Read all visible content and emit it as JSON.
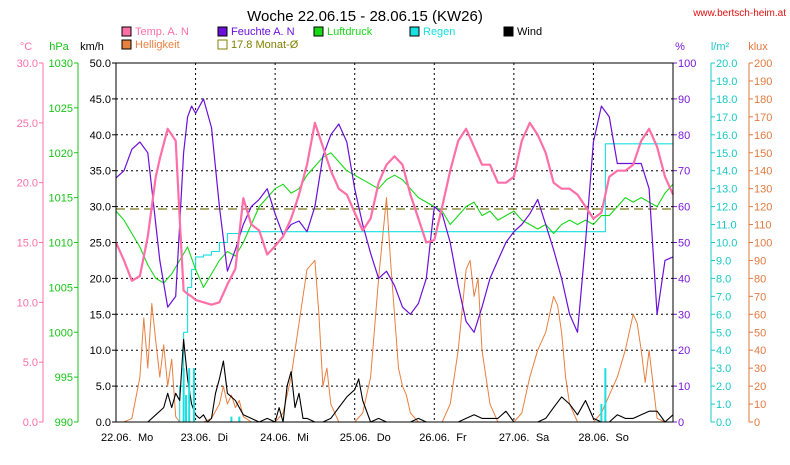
{
  "chart_data": {
    "type": "line",
    "title": "Woche 22.06.15 - 28.06.15 (KW26)",
    "source": "www.bertsch-heim.at",
    "x_labels": [
      "22.06.",
      "Mo",
      "23.06.",
      "Di",
      "24.06.",
      "Mi",
      "25.06.",
      "Do",
      "26.06.",
      "Fr",
      "27.06.",
      "Sa",
      "28.06.",
      "So"
    ],
    "days": [
      {
        "date": "22.06.",
        "day": "Mo"
      },
      {
        "date": "23.06.",
        "day": "Di"
      },
      {
        "date": "24.06.",
        "day": "Mi"
      },
      {
        "date": "25.06.",
        "day": "Do"
      },
      {
        "date": "26.06.",
        "day": "Fr"
      },
      {
        "date": "27.06.",
        "day": "Sa"
      },
      {
        "date": "28.06.",
        "day": "So"
      }
    ],
    "xlim": [
      0,
      7
    ],
    "grid": true,
    "axes": {
      "temp": {
        "unit": "°C",
        "min": 0,
        "max": 30,
        "ticks": [
          "0.0",
          "5.0",
          "10.0",
          "15.0",
          "20.0",
          "25.0",
          "30.0"
        ],
        "color": "#ff6fa8"
      },
      "pressure": {
        "unit": "hPa",
        "min": 990,
        "max": 1030,
        "ticks": [
          "990",
          "995",
          "1000",
          "1005",
          "1010",
          "1015",
          "1020",
          "1025",
          "1030"
        ],
        "color": "#18c418"
      },
      "wind": {
        "unit": "km/h",
        "min": 0,
        "max": 50,
        "ticks": [
          "0.0",
          "5.0",
          "10.0",
          "15.0",
          "20.0",
          "25.0",
          "30.0",
          "35.0",
          "40.0",
          "45.0",
          "50.0"
        ],
        "color": "#000000"
      },
      "humidity": {
        "unit": "%",
        "min": 0,
        "max": 100,
        "ticks": [
          "0",
          "10",
          "20",
          "30",
          "40",
          "50",
          "60",
          "70",
          "80",
          "90",
          "100"
        ],
        "color": "#7a18d8"
      },
      "rain": {
        "unit": "l/m²",
        "min": 0,
        "max": 20,
        "ticks": [
          "0.0",
          "1.0",
          "2.0",
          "3.0",
          "4.0",
          "5.0",
          "6.0",
          "7.0",
          "8.0",
          "9.0",
          "10.0",
          "11.0",
          "12.0",
          "13.0",
          "14.0",
          "15.0",
          "16.0",
          "17.0",
          "18.0",
          "19.0",
          "20.0"
        ],
        "color": "#18c8c8"
      },
      "light": {
        "unit": "klux",
        "min": 0,
        "max": 200,
        "ticks": [
          "0",
          "10",
          "20",
          "30",
          "40",
          "50",
          "60",
          "70",
          "80",
          "90",
          "100",
          "110",
          "120",
          "130",
          "140",
          "150",
          "160",
          "170",
          "180",
          "190",
          "200"
        ],
        "color": "#e07a40"
      }
    },
    "legend": [
      {
        "name": "Temp. A. N",
        "color": "#ff6fa8"
      },
      {
        "name": "Feuchte A. N",
        "color": "#6a10d8"
      },
      {
        "name": "Luftdruck",
        "color": "#18d818"
      },
      {
        "name": "Regen",
        "color": "#18e0e0"
      },
      {
        "name": "Wind",
        "color": "#000000"
      },
      {
        "name": "Helligkeit",
        "color": "#e88040"
      },
      {
        "name": "17.8 Monat-Ø",
        "color": "#808000"
      }
    ],
    "reference_line": {
      "name": "17.8 Monat-Ø",
      "axis": "temp",
      "value": 17.8
    },
    "series": [
      {
        "name": "Temp. A. N",
        "axis": "temp",
        "color": "#ff6fa8",
        "x": [
          0.0,
          0.1,
          0.2,
          0.3,
          0.4,
          0.5,
          0.55,
          0.65,
          0.75,
          0.8,
          0.85,
          0.9,
          0.95,
          1.0,
          1.1,
          1.2,
          1.3,
          1.4,
          1.5,
          1.6,
          1.7,
          1.8,
          1.9,
          2.0,
          2.1,
          2.2,
          2.3,
          2.4,
          2.5,
          2.6,
          2.7,
          2.8,
          2.9,
          3.0,
          3.1,
          3.2,
          3.3,
          3.4,
          3.5,
          3.6,
          3.7,
          3.8,
          3.9,
          4.0,
          4.1,
          4.2,
          4.3,
          4.4,
          4.5,
          4.6,
          4.7,
          4.8,
          4.9,
          5.0,
          5.1,
          5.2,
          5.3,
          5.4,
          5.5,
          5.6,
          5.7,
          5.8,
          5.9,
          6.0,
          6.1,
          6.2,
          6.3,
          6.4,
          6.5,
          6.6,
          6.7,
          6.8,
          6.9,
          7.0
        ],
        "y": [
          15.0,
          13.5,
          11.8,
          12.2,
          15.5,
          20.5,
          22.0,
          24.5,
          23.5,
          17.0,
          11.0,
          10.7,
          10.5,
          10.2,
          10.0,
          9.8,
          10.0,
          11.5,
          12.8,
          18.7,
          16.5,
          16.0,
          14.0,
          14.7,
          15.5,
          17.0,
          19.0,
          21.5,
          25.0,
          23.0,
          21.0,
          19.5,
          19.0,
          17.5,
          16.0,
          17.0,
          20.0,
          21.5,
          22.2,
          21.5,
          19.0,
          17.0,
          15.0,
          15.2,
          18.0,
          21.0,
          23.5,
          24.5,
          23.0,
          21.5,
          21.5,
          20.0,
          20.0,
          20.5,
          23.5,
          25.0,
          24.0,
          22.5,
          20.0,
          19.5,
          19.5,
          19.0,
          18.0,
          17.0,
          17.5,
          20.5,
          21.0,
          21.0,
          21.5,
          23.5,
          24.5,
          23.0,
          20.5,
          19.0
        ]
      },
      {
        "name": "Feuchte A. N",
        "axis": "humidity",
        "color": "#6a10d8",
        "x": [
          0.0,
          0.1,
          0.2,
          0.3,
          0.4,
          0.5,
          0.55,
          0.65,
          0.75,
          0.8,
          0.85,
          0.9,
          0.95,
          1.0,
          1.1,
          1.2,
          1.3,
          1.4,
          1.5,
          1.6,
          1.7,
          1.8,
          1.9,
          2.0,
          2.1,
          2.2,
          2.3,
          2.4,
          2.5,
          2.6,
          2.7,
          2.8,
          2.9,
          3.0,
          3.1,
          3.2,
          3.3,
          3.4,
          3.5,
          3.6,
          3.7,
          3.8,
          3.9,
          4.0,
          4.1,
          4.2,
          4.3,
          4.4,
          4.5,
          4.6,
          4.7,
          4.8,
          4.9,
          5.0,
          5.1,
          5.2,
          5.3,
          5.4,
          5.5,
          5.6,
          5.7,
          5.8,
          5.9,
          6.0,
          6.1,
          6.2,
          6.3,
          6.4,
          6.5,
          6.6,
          6.7,
          6.8,
          6.9,
          7.0
        ],
        "y": [
          68,
          70,
          76,
          78,
          75,
          55,
          45,
          32,
          35,
          55,
          75,
          85,
          88,
          86,
          90,
          82,
          60,
          42,
          48,
          55,
          60,
          62,
          65,
          58,
          52,
          55,
          56,
          53,
          60,
          74,
          80,
          83,
          78,
          65,
          55,
          47,
          40,
          42,
          38,
          32,
          30,
          33,
          40,
          60,
          58,
          50,
          38,
          28,
          25,
          32,
          40,
          45,
          50,
          53,
          55,
          58,
          62,
          55,
          48,
          40,
          30,
          25,
          50,
          78,
          88,
          85,
          72,
          72,
          72,
          72,
          65,
          30,
          45,
          46
        ]
      },
      {
        "name": "Luftdruck",
        "axis": "pressure",
        "color": "#18d818",
        "x": [
          0.0,
          0.1,
          0.2,
          0.3,
          0.4,
          0.5,
          0.6,
          0.7,
          0.8,
          0.9,
          1.0,
          1.1,
          1.2,
          1.3,
          1.4,
          1.5,
          1.6,
          1.7,
          1.8,
          1.9,
          2.0,
          2.1,
          2.2,
          2.3,
          2.4,
          2.5,
          2.6,
          2.7,
          2.8,
          2.9,
          3.0,
          3.1,
          3.2,
          3.3,
          3.4,
          3.5,
          3.6,
          3.7,
          3.8,
          3.9,
          4.0,
          4.1,
          4.2,
          4.3,
          4.4,
          4.5,
          4.6,
          4.7,
          4.8,
          4.9,
          5.0,
          5.1,
          5.2,
          5.3,
          5.4,
          5.5,
          5.6,
          5.7,
          5.8,
          5.9,
          6.0,
          6.1,
          6.2,
          6.3,
          6.4,
          6.5,
          6.6,
          6.7,
          6.8,
          6.9,
          7.0
        ],
        "y": [
          1013.5,
          1012.5,
          1011.0,
          1009.5,
          1007.5,
          1006.0,
          1005.5,
          1006.5,
          1008.0,
          1009.5,
          1007.0,
          1005.0,
          1006.5,
          1008.0,
          1009.0,
          1008.5,
          1010.0,
          1012.0,
          1014.0,
          1015.0,
          1016.0,
          1016.5,
          1015.5,
          1016.0,
          1017.5,
          1018.5,
          1019.5,
          1020.0,
          1019.0,
          1018.0,
          1017.5,
          1017.0,
          1016.5,
          1016.0,
          1017.0,
          1017.5,
          1017.0,
          1016.0,
          1015.0,
          1014.5,
          1014.0,
          1013.5,
          1012.0,
          1013.0,
          1014.0,
          1014.5,
          1013.0,
          1013.5,
          1012.5,
          1013.0,
          1013.5,
          1012.5,
          1012.0,
          1011.5,
          1012.0,
          1011.0,
          1012.0,
          1012.5,
          1012.0,
          1012.5,
          1012.0,
          1013.0,
          1013.0,
          1014.0,
          1015.0,
          1014.5,
          1015.0,
          1014.5,
          1014.0,
          1015.5,
          1016.5
        ]
      },
      {
        "name": "Regen",
        "axis": "rain",
        "color": "#18e0e0",
        "x": [
          0.0,
          0.75,
          0.8,
          0.85,
          0.9,
          0.95,
          1.0,
          1.1,
          1.2,
          1.3,
          1.4,
          1.5,
          1.55,
          6.1,
          6.15,
          6.5,
          6.55,
          6.62,
          7.0
        ],
        "y": [
          0.0,
          0.0,
          2.0,
          5.0,
          7.5,
          8.5,
          9.2,
          9.3,
          9.5,
          10.0,
          10.5,
          10.5,
          10.6,
          10.6,
          15.5,
          15.5,
          15.5,
          15.5,
          15.5
        ]
      },
      {
        "name": "Wind",
        "axis": "wind",
        "color": "#000000",
        "x": [
          0.0,
          0.3,
          0.4,
          0.5,
          0.6,
          0.65,
          0.7,
          0.75,
          0.8,
          0.85,
          0.9,
          0.95,
          1.0,
          1.05,
          1.1,
          1.15,
          1.2,
          1.25,
          1.3,
          1.35,
          1.4,
          1.5,
          1.6,
          1.7,
          1.8,
          1.9,
          2.0,
          2.05,
          2.1,
          2.15,
          2.2,
          2.25,
          2.3,
          2.35,
          2.4,
          2.5,
          2.6,
          2.7,
          2.8,
          2.9,
          3.0,
          3.05,
          3.1,
          3.15,
          3.2,
          3.3,
          3.4,
          3.5,
          3.6,
          3.7,
          3.8,
          3.9,
          4.0,
          4.1,
          4.2,
          4.3,
          4.4,
          4.5,
          4.6,
          4.7,
          4.8,
          4.9,
          5.0,
          5.1,
          5.2,
          5.3,
          5.4,
          5.5,
          5.6,
          5.7,
          5.8,
          5.9,
          6.0,
          6.1,
          6.2,
          6.3,
          6.4,
          6.5,
          6.6,
          6.7,
          6.8,
          6.9,
          7.0
        ],
        "y": [
          0,
          0,
          0,
          1,
          2,
          4,
          2,
          4,
          3,
          11.5,
          6,
          2.5,
          1,
          0.5,
          1,
          0,
          0.5,
          4,
          6,
          8.5,
          4,
          3,
          1,
          0.5,
          0,
          0.5,
          0,
          2,
          0,
          5,
          7,
          2,
          4,
          0.5,
          0.5,
          0,
          0,
          0.5,
          2,
          3.5,
          4.5,
          6,
          3,
          1.5,
          0,
          0.5,
          0,
          0,
          0,
          0,
          0.5,
          0,
          0,
          0,
          0,
          0,
          0.5,
          1,
          0.5,
          0.5,
          0.5,
          1.5,
          0,
          0,
          0,
          0,
          0.5,
          2,
          3.5,
          2.5,
          1,
          3,
          0.5,
          0,
          0,
          1,
          0.5,
          0.5,
          1,
          1.5,
          1.5,
          0,
          1
        ]
      },
      {
        "name": "Helligkeit",
        "axis": "light",
        "color": "#e88040",
        "x": [
          0.0,
          0.1,
          0.2,
          0.3,
          0.35,
          0.4,
          0.45,
          0.5,
          0.55,
          0.6,
          0.65,
          0.7,
          0.75,
          0.8,
          0.85,
          0.9,
          1.0,
          1.1,
          1.2,
          1.3,
          1.35,
          1.4,
          1.45,
          1.5,
          1.55,
          1.6,
          1.7,
          1.8,
          1.9,
          2.0,
          2.1,
          2.2,
          2.3,
          2.4,
          2.5,
          2.55,
          2.6,
          2.65,
          2.7,
          2.75,
          2.8,
          2.9,
          3.0,
          3.1,
          3.2,
          3.3,
          3.4,
          3.45,
          3.5,
          3.55,
          3.6,
          3.65,
          3.7,
          3.8,
          3.9,
          4.0,
          4.1,
          4.2,
          4.3,
          4.4,
          4.45,
          4.5,
          4.55,
          4.6,
          4.7,
          4.8,
          4.9,
          5.0,
          5.1,
          5.2,
          5.3,
          5.4,
          5.5,
          5.55,
          5.6,
          5.65,
          5.7,
          5.8,
          5.9,
          6.0,
          6.1,
          6.2,
          6.3,
          6.4,
          6.5,
          6.55,
          6.6,
          6.65,
          6.7,
          6.8,
          6.9,
          7.0
        ],
        "y": [
          0,
          0,
          2,
          25,
          58,
          30,
          66,
          45,
          25,
          43,
          20,
          35,
          3,
          0,
          0,
          0,
          0,
          0,
          2,
          10,
          20,
          10,
          15,
          8,
          12,
          3,
          0,
          0,
          0,
          0,
          5,
          25,
          55,
          85,
          90,
          60,
          20,
          30,
          10,
          5,
          0,
          0,
          0,
          5,
          25,
          80,
          125,
          90,
          60,
          30,
          20,
          15,
          5,
          0,
          0,
          0,
          0,
          10,
          40,
          85,
          90,
          70,
          80,
          40,
          10,
          0,
          0,
          0,
          5,
          25,
          40,
          50,
          70,
          65,
          50,
          25,
          10,
          0,
          0,
          0,
          5,
          15,
          25,
          40,
          60,
          55,
          40,
          22,
          40,
          2,
          0,
          0
        ]
      }
    ]
  }
}
